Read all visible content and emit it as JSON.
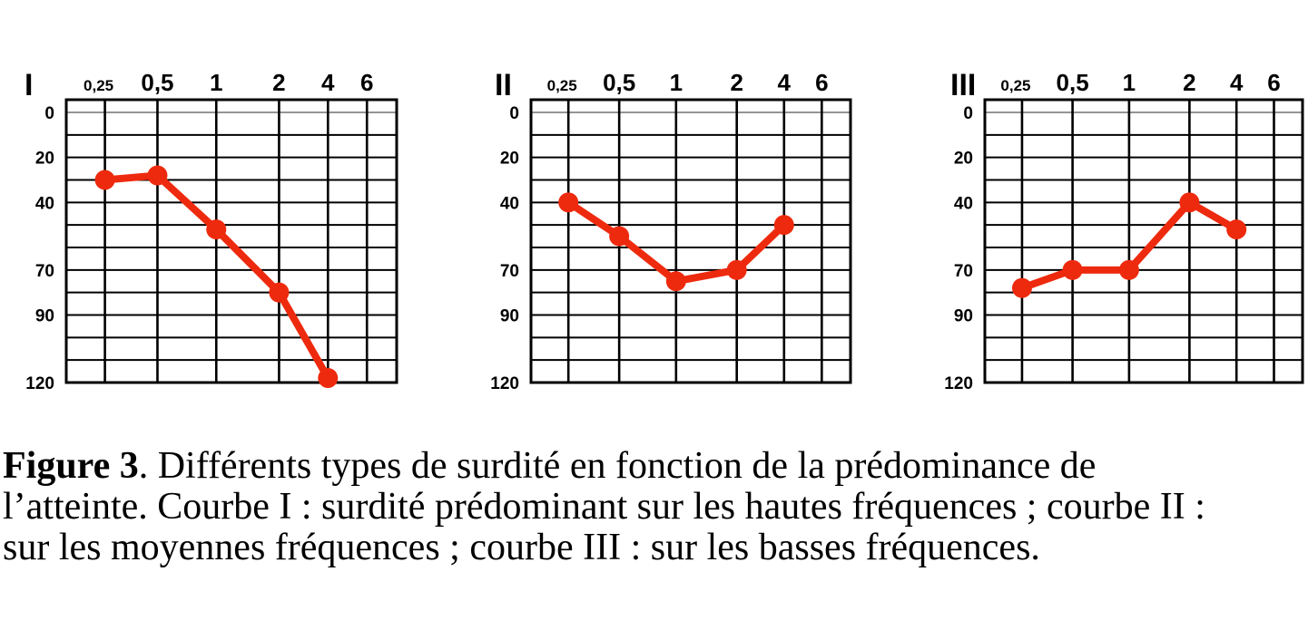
{
  "caption": {
    "bold": "Figure 3",
    "line1": ". Différents types de surdité en fonction de la prédominance de",
    "line2": "l’atteinte. Courbe I : surdité prédominant sur les hautes fréquences ; courbe II :",
    "line3": "sur les moyennes fréquences ; courbe III : sur les basses fréquences."
  },
  "colors": {
    "curve_red": "#ee2a0e",
    "grid_black": "#000000",
    "grid_thin_gray": "#555555"
  },
  "chart_data": [
    {
      "type": "line",
      "title": "I",
      "series_name": "courbe I - surdité prédominant sur les hautes fréquences",
      "x_tick_labels": [
        "0,25",
        "0,5",
        "1",
        "2",
        "4",
        "6"
      ],
      "x_ticks_khz": [
        0.25,
        0.5,
        1,
        2,
        4,
        6
      ],
      "y_tick_labels": [
        "0",
        "20",
        "40",
        "70",
        "90",
        "120"
      ],
      "y_ticks": [
        0,
        20,
        40,
        70,
        90,
        120
      ],
      "ylim": [
        0,
        120
      ],
      "y_axis_inverted": true,
      "grid": true,
      "xlabel": "",
      "ylabel": "",
      "x_khz": [
        0.25,
        0.5,
        1,
        2,
        4
      ],
      "y_db": [
        30,
        28,
        52,
        80,
        118
      ]
    },
    {
      "type": "line",
      "title": "II",
      "series_name": "courbe II - surdité prédominant sur les moyennes fréquences",
      "x_tick_labels": [
        "0,25",
        "0,5",
        "1",
        "2",
        "4",
        "6"
      ],
      "x_ticks_khz": [
        0.25,
        0.5,
        1,
        2,
        4,
        6
      ],
      "y_tick_labels": [
        "0",
        "20",
        "40",
        "70",
        "90",
        "120"
      ],
      "y_ticks": [
        0,
        20,
        40,
        70,
        90,
        120
      ],
      "ylim": [
        0,
        120
      ],
      "y_axis_inverted": true,
      "grid": true,
      "xlabel": "",
      "ylabel": "",
      "x_khz": [
        0.25,
        0.5,
        1,
        2,
        4
      ],
      "y_db": [
        40,
        55,
        75,
        70,
        50
      ]
    },
    {
      "type": "line",
      "title": "III",
      "series_name": "courbe III - surdité prédominant sur les basses fréquences",
      "x_tick_labels": [
        "0,25",
        "0,5",
        "1",
        "2",
        "4",
        "6"
      ],
      "x_ticks_khz": [
        0.25,
        0.5,
        1,
        2,
        4,
        6
      ],
      "y_tick_labels": [
        "0",
        "20",
        "40",
        "70",
        "90",
        "120"
      ],
      "y_ticks": [
        0,
        20,
        40,
        70,
        90,
        120
      ],
      "ylim": [
        0,
        120
      ],
      "y_axis_inverted": true,
      "grid": true,
      "xlabel": "",
      "ylabel": "",
      "x_khz": [
        0.25,
        0.5,
        1,
        2,
        4
      ],
      "y_db": [
        78,
        70,
        70,
        40,
        52
      ]
    }
  ]
}
